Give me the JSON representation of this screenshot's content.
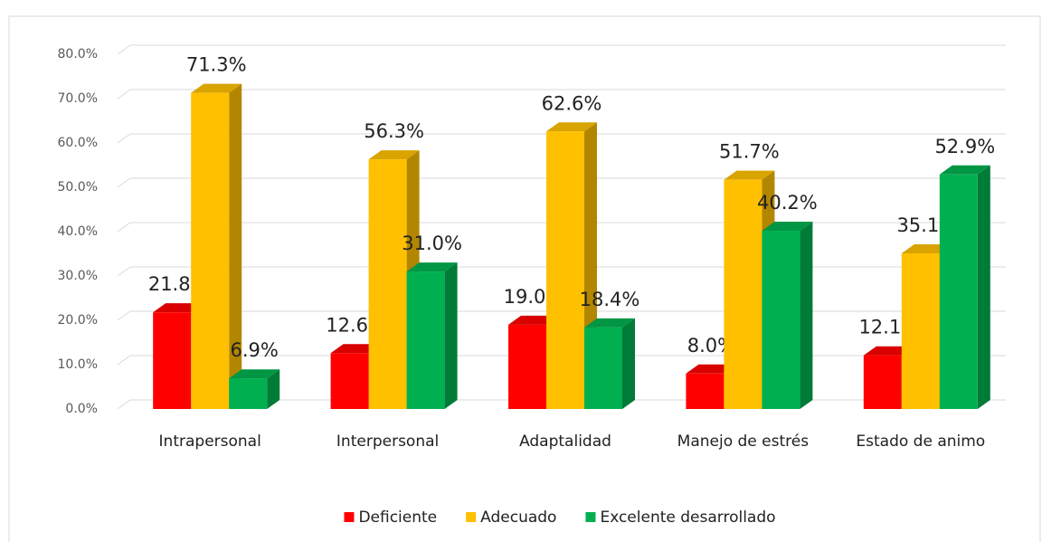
{
  "chart_data": {
    "type": "bar",
    "categories": [
      "Intrapersonal",
      "Interpersonal",
      "Adaptalidad",
      "Manejo de estrés",
      "Estado de animo"
    ],
    "series": [
      {
        "name": "Deficiente",
        "color": "#ff0000",
        "values": [
          21.8,
          12.6,
          19.0,
          8.0,
          12.1
        ],
        "value_labels": [
          "21.8%",
          "12.6%",
          "19.0%",
          "8.0%",
          "12.1%"
        ]
      },
      {
        "name": "Adecuado",
        "color": "#ffc000",
        "values": [
          71.3,
          56.3,
          62.6,
          51.7,
          35.1
        ],
        "value_labels": [
          "71.3%",
          "56.3%",
          "62.6%",
          "51.7%",
          "35.1%"
        ]
      },
      {
        "name": "Excelente desarrollado",
        "color": "#00b050",
        "values": [
          6.9,
          31.0,
          18.4,
          40.2,
          52.9
        ],
        "value_labels": [
          "6.9%",
          "31.0%",
          "18.4%",
          "40.2%",
          "52.9%"
        ]
      }
    ],
    "ylim": [
      0,
      80
    ],
    "yticks": [
      {
        "value": 0,
        "label": "0.0%"
      },
      {
        "value": 10,
        "label": "10.0%"
      },
      {
        "value": 20,
        "label": "20.0%"
      },
      {
        "value": 30,
        "label": "30.0%"
      },
      {
        "value": 40,
        "label": "40.0%"
      },
      {
        "value": 50,
        "label": "50.0%"
      },
      {
        "value": 60,
        "label": "60.0%"
      },
      {
        "value": 70,
        "label": "70.0%"
      },
      {
        "value": 80,
        "label": "80.0%"
      }
    ],
    "grid": true,
    "legend": "bottom"
  }
}
